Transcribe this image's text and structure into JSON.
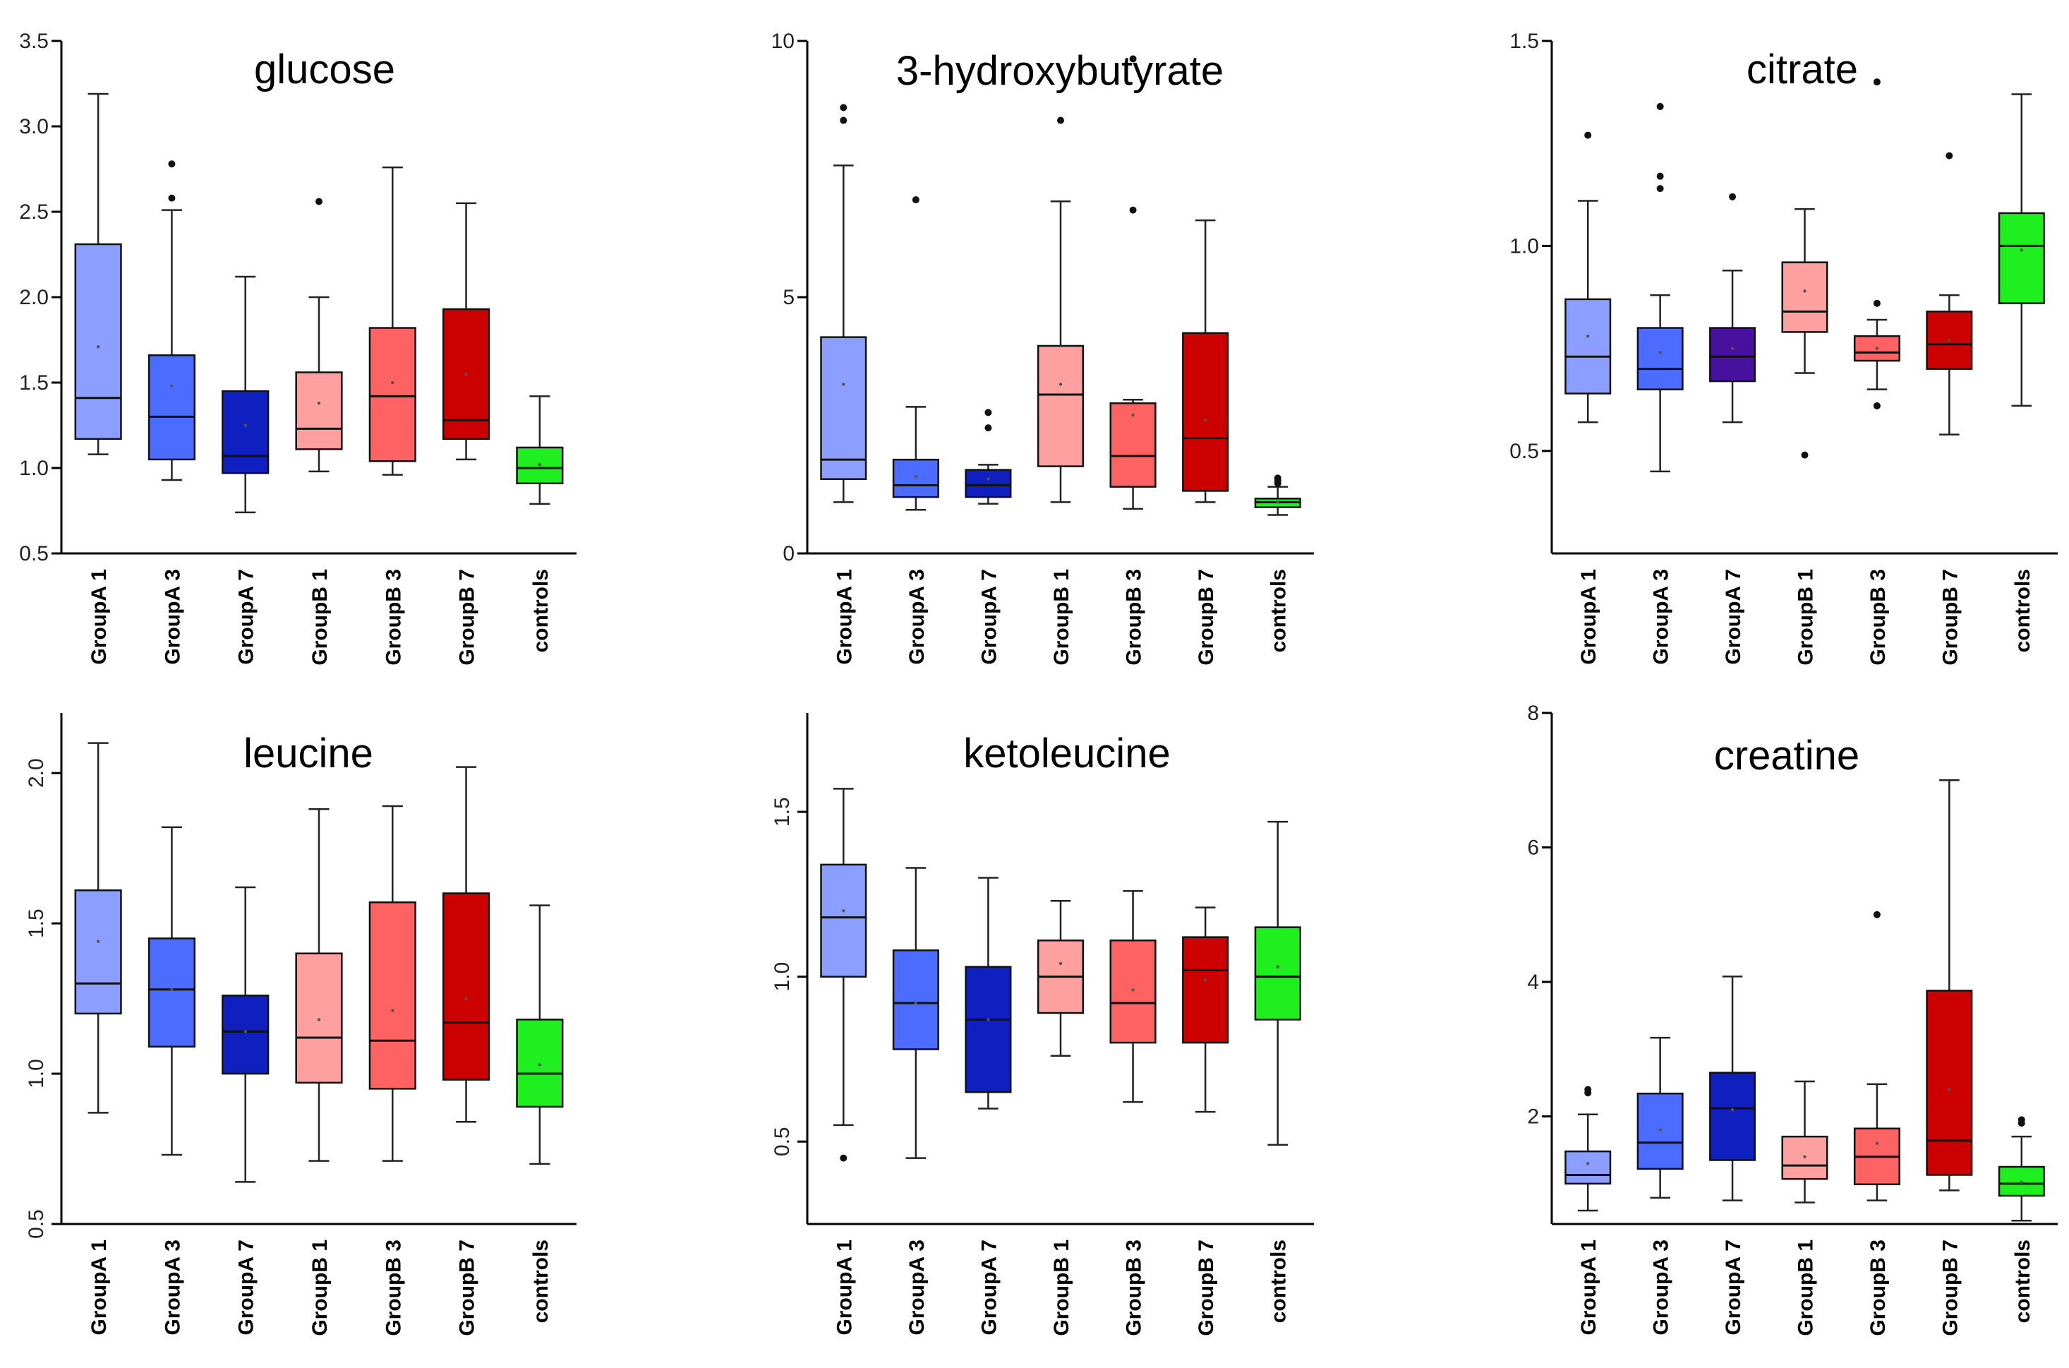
{
  "colors": {
    "GroupA 1": "#8C9EFF",
    "GroupA 3": "#4C6BFF",
    "GroupA 7": "#0F1FC0",
    "GroupA 7 (citrate)": "#47109E",
    "GroupB 1": "#FFA0A0",
    "GroupB 3": "#FF6262",
    "GroupB 7": "#CC0000",
    "controls": "#1FEE1F"
  },
  "chart_data": [
    {
      "type": "box",
      "title": "glucose",
      "categories": [
        "GroupA 1",
        "GroupA 3",
        "GroupA 7",
        "GroupB 1",
        "GroupB 3",
        "GroupB 7",
        "controls"
      ],
      "ylim": [
        0.5,
        3.5
      ],
      "yticks": [
        "0.5",
        "1.0",
        "1.5",
        "2.0",
        "2.5",
        "3.0",
        "3.5"
      ],
      "ytick_values": [
        0.5,
        1.0,
        1.5,
        2.0,
        2.5,
        3.0,
        3.5
      ],
      "tick_rotate": false,
      "grid": false,
      "boxes": [
        {
          "whisker_low": 1.08,
          "q1": 1.17,
          "median": 1.41,
          "q3": 2.31,
          "whisker_high": 3.19,
          "mean": 1.71,
          "outliers": []
        },
        {
          "whisker_low": 0.93,
          "q1": 1.05,
          "median": 1.3,
          "q3": 1.66,
          "whisker_high": 2.51,
          "mean": 1.48,
          "outliers": [
            2.58,
            2.78
          ]
        },
        {
          "whisker_low": 0.74,
          "q1": 0.97,
          "median": 1.07,
          "q3": 1.45,
          "whisker_high": 2.12,
          "mean": 1.25,
          "outliers": []
        },
        {
          "whisker_low": 0.98,
          "q1": 1.11,
          "median": 1.23,
          "q3": 1.56,
          "whisker_high": 2.0,
          "mean": 1.38,
          "outliers": [
            2.56
          ]
        },
        {
          "whisker_low": 0.96,
          "q1": 1.04,
          "median": 1.42,
          "q3": 1.82,
          "whisker_high": 2.76,
          "mean": 1.5,
          "outliers": []
        },
        {
          "whisker_low": 1.05,
          "q1": 1.17,
          "median": 1.28,
          "q3": 1.93,
          "whisker_high": 2.55,
          "mean": 1.55,
          "outliers": []
        },
        {
          "whisker_low": 0.79,
          "q1": 0.91,
          "median": 1.0,
          "q3": 1.12,
          "whisker_high": 1.42,
          "mean": 1.02,
          "outliers": []
        }
      ]
    },
    {
      "type": "box",
      "title": "3-hydroxybutyrate",
      "categories": [
        "GroupA 1",
        "GroupA 3",
        "GroupA 7",
        "GroupB 1",
        "GroupB 3",
        "GroupB 7",
        "controls"
      ],
      "ylim": [
        0,
        10
      ],
      "yticks": [
        "0",
        "5",
        "10"
      ],
      "ytick_values": [
        0,
        5,
        10
      ],
      "tick_rotate": false,
      "grid": false,
      "boxes": [
        {
          "whisker_low": 1.0,
          "q1": 1.45,
          "median": 1.83,
          "q3": 4.22,
          "whisker_high": 7.57,
          "mean": 3.3,
          "outliers": [
            8.45,
            8.7
          ]
        },
        {
          "whisker_low": 0.85,
          "q1": 1.1,
          "median": 1.33,
          "q3": 1.83,
          "whisker_high": 2.86,
          "mean": 1.5,
          "outliers": [
            6.9
          ]
        },
        {
          "whisker_low": 0.97,
          "q1": 1.1,
          "median": 1.33,
          "q3": 1.63,
          "whisker_high": 1.73,
          "mean": 1.45,
          "outliers": [
            2.45,
            2.75
          ]
        },
        {
          "whisker_low": 1.0,
          "q1": 1.7,
          "median": 3.1,
          "q3": 4.05,
          "whisker_high": 6.87,
          "mean": 3.3,
          "outliers": [
            8.45
          ]
        },
        {
          "whisker_low": 0.87,
          "q1": 1.3,
          "median": 1.9,
          "q3": 2.93,
          "whisker_high": 3.0,
          "mean": 2.7,
          "outliers": [
            6.7,
            9.65
          ]
        },
        {
          "whisker_low": 1.0,
          "q1": 1.22,
          "median": 2.25,
          "q3": 4.3,
          "whisker_high": 6.5,
          "mean": 2.6,
          "outliers": []
        },
        {
          "whisker_low": 0.75,
          "q1": 0.9,
          "median": 1.0,
          "q3": 1.07,
          "whisker_high": 1.3,
          "mean": 1.0,
          "outliers": [
            1.37,
            1.42,
            1.47
          ]
        }
      ]
    },
    {
      "type": "box",
      "title": "citrate",
      "categories": [
        "GroupA 1",
        "GroupA 3",
        "GroupA 7",
        "GroupB 1",
        "GroupB 3",
        "GroupB 7",
        "controls"
      ],
      "ylim": [
        0.25,
        1.5
      ],
      "yticks": [
        "0.5",
        "1.0",
        "1.5"
      ],
      "ytick_values": [
        0.5,
        1.0,
        1.5
      ],
      "tick_rotate": false,
      "grid": false,
      "boxes": [
        {
          "whisker_low": 0.57,
          "q1": 0.64,
          "median": 0.73,
          "q3": 0.87,
          "whisker_high": 1.11,
          "mean": 0.78,
          "outliers": [
            1.27
          ]
        },
        {
          "whisker_low": 0.45,
          "q1": 0.65,
          "median": 0.7,
          "q3": 0.8,
          "whisker_high": 0.88,
          "mean": 0.74,
          "outliers": [
            1.14,
            1.17,
            1.34
          ]
        },
        {
          "whisker_low": 0.57,
          "q1": 0.67,
          "median": 0.73,
          "q3": 0.8,
          "whisker_high": 0.94,
          "mean": 0.75,
          "outliers": [
            1.12
          ]
        },
        {
          "whisker_low": 0.69,
          "q1": 0.79,
          "median": 0.84,
          "q3": 0.96,
          "whisker_high": 1.09,
          "mean": 0.89,
          "outliers": [
            0.49
          ]
        },
        {
          "whisker_low": 0.65,
          "q1": 0.72,
          "median": 0.74,
          "q3": 0.78,
          "whisker_high": 0.82,
          "mean": 0.75,
          "outliers": [
            0.61,
            0.86,
            1.4
          ]
        },
        {
          "whisker_low": 0.54,
          "q1": 0.7,
          "median": 0.76,
          "q3": 0.84,
          "whisker_high": 0.88,
          "mean": 0.77,
          "outliers": [
            1.22
          ]
        },
        {
          "whisker_low": 0.61,
          "q1": 0.86,
          "median": 1.0,
          "q3": 1.08,
          "whisker_high": 1.37,
          "mean": 0.99,
          "outliers": []
        }
      ]
    },
    {
      "type": "box",
      "title": "leucine",
      "categories": [
        "GroupA 1",
        "GroupA 3",
        "GroupA 7",
        "GroupB 1",
        "GroupB 3",
        "GroupB 7",
        "controls"
      ],
      "ylim": [
        0.5,
        2.2
      ],
      "yticks": [
        "0.5",
        "1.0",
        "1.5",
        "2.0"
      ],
      "ytick_values": [
        0.5,
        1.0,
        1.5,
        2.0
      ],
      "tick_rotate": true,
      "grid": false,
      "boxes": [
        {
          "whisker_low": 0.87,
          "q1": 1.2,
          "median": 1.3,
          "q3": 1.61,
          "whisker_high": 2.1,
          "mean": 1.44,
          "outliers": []
        },
        {
          "whisker_low": 0.73,
          "q1": 1.09,
          "median": 1.28,
          "q3": 1.45,
          "whisker_high": 1.82,
          "mean": 1.28,
          "outliers": []
        },
        {
          "whisker_low": 0.64,
          "q1": 1.0,
          "median": 1.14,
          "q3": 1.26,
          "whisker_high": 1.62,
          "mean": 1.14,
          "outliers": []
        },
        {
          "whisker_low": 0.71,
          "q1": 0.97,
          "median": 1.12,
          "q3": 1.4,
          "whisker_high": 1.88,
          "mean": 1.18,
          "outliers": []
        },
        {
          "whisker_low": 0.71,
          "q1": 0.95,
          "median": 1.11,
          "q3": 1.57,
          "whisker_high": 1.89,
          "mean": 1.21,
          "outliers": []
        },
        {
          "whisker_low": 0.84,
          "q1": 0.98,
          "median": 1.17,
          "q3": 1.6,
          "whisker_high": 2.02,
          "mean": 1.25,
          "outliers": []
        },
        {
          "whisker_low": 0.7,
          "q1": 0.89,
          "median": 1.0,
          "q3": 1.18,
          "whisker_high": 1.56,
          "mean": 1.03,
          "outliers": []
        }
      ]
    },
    {
      "type": "box",
      "title": "ketoleucine",
      "categories": [
        "GroupA 1",
        "GroupA 3",
        "GroupA 7",
        "GroupB 1",
        "GroupB 3",
        "GroupB 7",
        "controls"
      ],
      "ylim": [
        0.25,
        1.8
      ],
      "yticks": [
        "0.5",
        "1.0",
        "1.5"
      ],
      "ytick_values": [
        0.5,
        1.0,
        1.5
      ],
      "tick_rotate": true,
      "grid": false,
      "boxes": [
        {
          "whisker_low": 0.55,
          "q1": 1.0,
          "median": 1.18,
          "q3": 1.34,
          "whisker_high": 1.57,
          "mean": 1.2,
          "outliers": [
            0.45
          ]
        },
        {
          "whisker_low": 0.45,
          "q1": 0.78,
          "median": 0.92,
          "q3": 1.08,
          "whisker_high": 1.33,
          "mean": 0.92,
          "outliers": []
        },
        {
          "whisker_low": 0.6,
          "q1": 0.65,
          "median": 0.87,
          "q3": 1.03,
          "whisker_high": 1.3,
          "mean": 0.87,
          "outliers": []
        },
        {
          "whisker_low": 0.76,
          "q1": 0.89,
          "median": 1.0,
          "q3": 1.11,
          "whisker_high": 1.23,
          "mean": 1.04,
          "outliers": []
        },
        {
          "whisker_low": 0.62,
          "q1": 0.8,
          "median": 0.92,
          "q3": 1.11,
          "whisker_high": 1.26,
          "mean": 0.96,
          "outliers": []
        },
        {
          "whisker_low": 0.59,
          "q1": 0.8,
          "median": 1.02,
          "q3": 1.12,
          "whisker_high": 1.21,
          "mean": 0.99,
          "outliers": []
        },
        {
          "whisker_low": 0.49,
          "q1": 0.87,
          "median": 1.0,
          "q3": 1.15,
          "whisker_high": 1.47,
          "mean": 1.03,
          "outliers": []
        }
      ]
    },
    {
      "type": "box",
      "title": "creatine",
      "categories": [
        "GroupA 1",
        "GroupA 3",
        "GroupA 7",
        "GroupB 1",
        "GroupB 3",
        "GroupB 7",
        "controls"
      ],
      "ylim": [
        0.4,
        8
      ],
      "yticks": [
        "2",
        "4",
        "6",
        "8"
      ],
      "ytick_values": [
        2,
        4,
        6,
        8
      ],
      "tick_rotate": false,
      "grid": false,
      "boxes": [
        {
          "whisker_low": 0.6,
          "q1": 1.0,
          "median": 1.13,
          "q3": 1.48,
          "whisker_high": 2.03,
          "mean": 1.3,
          "outliers": [
            2.35,
            2.4
          ]
        },
        {
          "whisker_low": 0.79,
          "q1": 1.22,
          "median": 1.61,
          "q3": 2.34,
          "whisker_high": 3.17,
          "mean": 1.8,
          "outliers": []
        },
        {
          "whisker_low": 0.75,
          "q1": 1.35,
          "median": 2.12,
          "q3": 2.65,
          "whisker_high": 4.08,
          "mean": 2.1,
          "outliers": []
        },
        {
          "whisker_low": 0.72,
          "q1": 1.07,
          "median": 1.27,
          "q3": 1.7,
          "whisker_high": 2.52,
          "mean": 1.4,
          "outliers": []
        },
        {
          "whisker_low": 0.75,
          "q1": 0.99,
          "median": 1.4,
          "q3": 1.82,
          "whisker_high": 2.48,
          "mean": 1.6,
          "outliers": [
            5.0
          ]
        },
        {
          "whisker_low": 0.9,
          "q1": 1.13,
          "median": 1.64,
          "q3": 3.87,
          "whisker_high": 7.0,
          "mean": 2.4,
          "outliers": []
        },
        {
          "whisker_low": 0.45,
          "q1": 0.82,
          "median": 1.0,
          "q3": 1.25,
          "whisker_high": 1.7,
          "mean": 1.02,
          "outliers": [
            1.9,
            1.95
          ]
        }
      ]
    }
  ]
}
